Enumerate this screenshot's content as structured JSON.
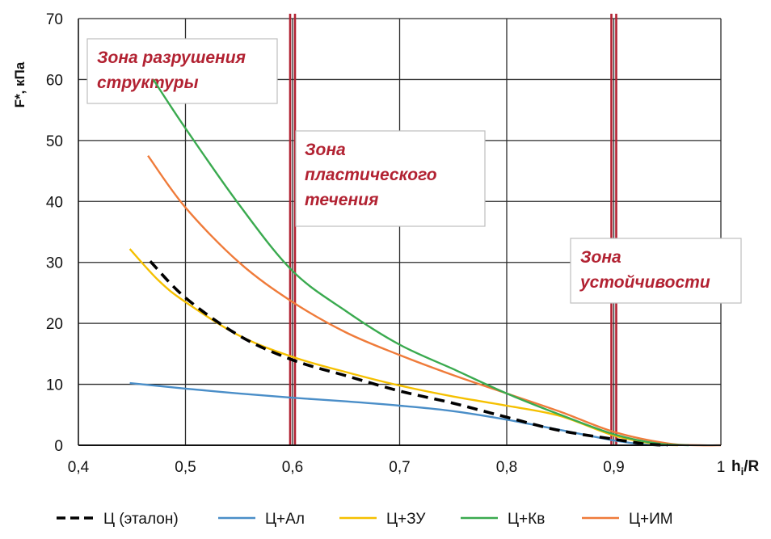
{
  "chart_data": {
    "type": "line",
    "xlabel_main": "h",
    "xlabel_sub": "i",
    "xlabel_rest": "/R",
    "ylabel": "F*, кПа",
    "xlim": [
      0.4,
      1.0
    ],
    "ylim": [
      0,
      70
    ],
    "x_ticks": [
      "0,4",
      "0,5",
      "0,6",
      "0,7",
      "0,8",
      "0,9",
      "1"
    ],
    "y_ticks": [
      "0",
      "10",
      "20",
      "30",
      "40",
      "50",
      "60",
      "70"
    ],
    "grid": true,
    "legend_position": "bottom",
    "zone_lines": [
      0.6,
      0.9
    ],
    "zones": [
      {
        "lines": [
          "Зона разрушения",
          "структуры"
        ]
      },
      {
        "lines": [
          "Зона",
          "пластического",
          "течения"
        ]
      },
      {
        "lines": [
          "Зона",
          "устойчивости"
        ]
      }
    ],
    "series": [
      {
        "name": "Ц (эталон)",
        "color": "#000000",
        "dashed": true,
        "points": [
          [
            0.467,
            30.2
          ],
          [
            0.5,
            24.2
          ],
          [
            0.55,
            18.0
          ],
          [
            0.6,
            14.0
          ],
          [
            0.65,
            11.4
          ],
          [
            0.7,
            8.9
          ],
          [
            0.75,
            6.9
          ],
          [
            0.8,
            4.6
          ],
          [
            0.85,
            2.4
          ],
          [
            0.9,
            1.0
          ],
          [
            0.93,
            0.2
          ],
          [
            0.95,
            0.0
          ]
        ]
      },
      {
        "name": "Ц+Ал",
        "color": "#4a8ec8",
        "dashed": false,
        "points": [
          [
            0.448,
            10.2
          ],
          [
            0.5,
            9.3
          ],
          [
            0.55,
            8.5
          ],
          [
            0.6,
            7.8
          ],
          [
            0.65,
            7.2
          ],
          [
            0.7,
            6.5
          ],
          [
            0.75,
            5.6
          ],
          [
            0.8,
            4.2
          ],
          [
            0.85,
            2.5
          ],
          [
            0.9,
            0.8
          ],
          [
            0.93,
            0.1
          ],
          [
            0.95,
            0.0
          ]
        ]
      },
      {
        "name": "Ц+ЗУ",
        "color": "#f5c000",
        "dashed": false,
        "points": [
          [
            0.448,
            32.2
          ],
          [
            0.475,
            27.0
          ],
          [
            0.5,
            23.5
          ],
          [
            0.55,
            18.0
          ],
          [
            0.6,
            14.5
          ],
          [
            0.65,
            12.0
          ],
          [
            0.7,
            9.8
          ],
          [
            0.75,
            8.0
          ],
          [
            0.8,
            6.5
          ],
          [
            0.85,
            4.8
          ],
          [
            0.9,
            1.6
          ],
          [
            0.94,
            0.2
          ],
          [
            0.96,
            0.0
          ]
        ]
      },
      {
        "name": "Ц+Кв",
        "color": "#3aaa4f",
        "dashed": false,
        "points": [
          [
            0.47,
            60.0
          ],
          [
            0.5,
            52.0
          ],
          [
            0.55,
            39.5
          ],
          [
            0.6,
            28.6
          ],
          [
            0.65,
            22.0
          ],
          [
            0.7,
            16.5
          ],
          [
            0.75,
            12.5
          ],
          [
            0.8,
            8.5
          ],
          [
            0.85,
            5.0
          ],
          [
            0.9,
            1.8
          ],
          [
            0.94,
            0.3
          ],
          [
            0.97,
            0.0
          ]
        ]
      },
      {
        "name": "Ц+ИМ",
        "color": "#ef7b3a",
        "dashed": false,
        "points": [
          [
            0.465,
            47.5
          ],
          [
            0.5,
            39.0
          ],
          [
            0.55,
            30.0
          ],
          [
            0.6,
            23.5
          ],
          [
            0.65,
            18.5
          ],
          [
            0.7,
            14.8
          ],
          [
            0.75,
            11.5
          ],
          [
            0.8,
            8.5
          ],
          [
            0.85,
            5.5
          ],
          [
            0.9,
            2.2
          ],
          [
            0.95,
            0.3
          ],
          [
            0.98,
            0.0
          ],
          [
            1.0,
            0.0
          ]
        ]
      }
    ]
  }
}
